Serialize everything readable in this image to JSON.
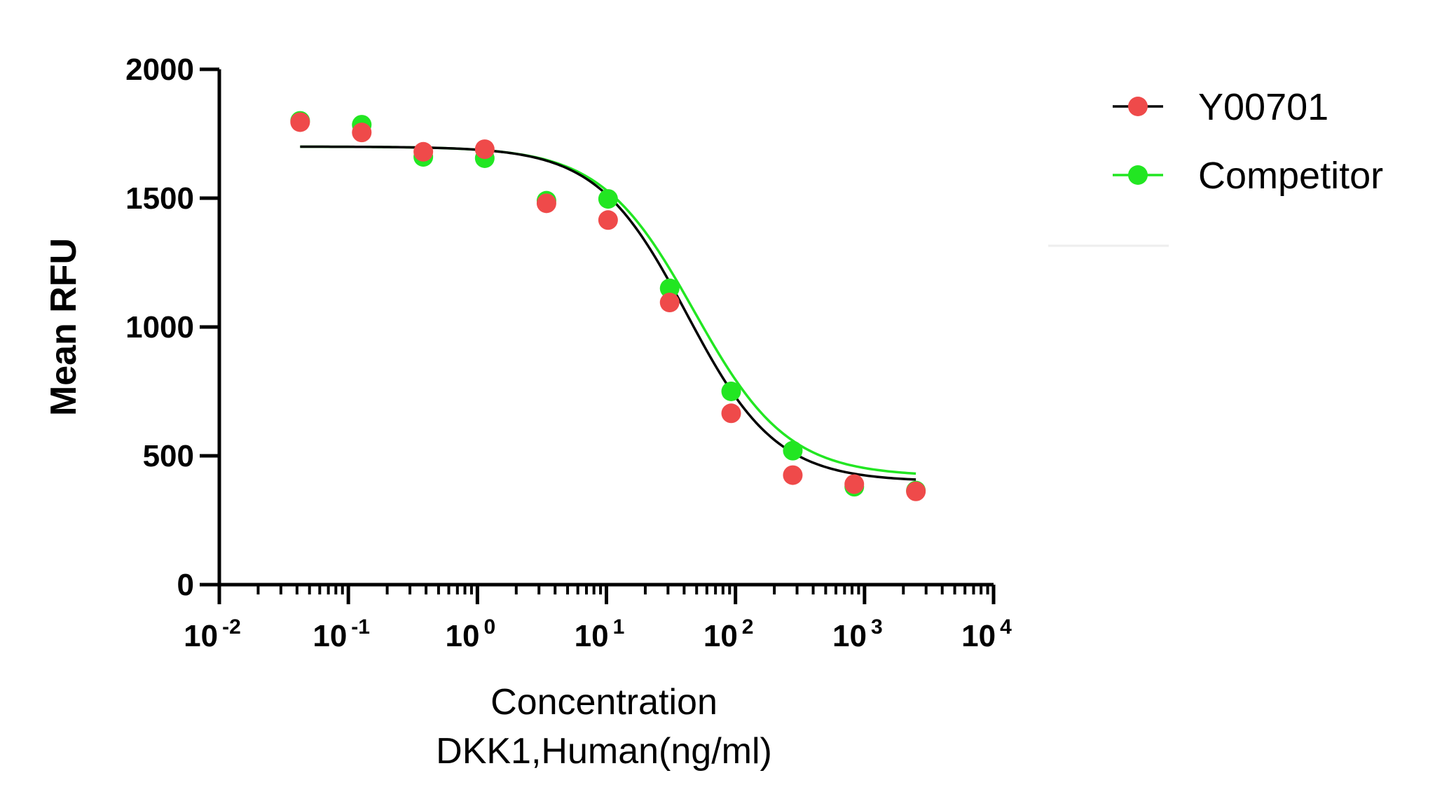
{
  "chart_data": {
    "type": "scatter",
    "title": "",
    "ylabel": "Mean RFU",
    "xlabel": "Concentration",
    "xlabel_line2": "DKK1,Human(ng/ml)",
    "xscale": "log",
    "xlim": [
      0.01,
      10000
    ],
    "ylim": [
      0,
      2000
    ],
    "yticks": [
      0,
      500,
      1000,
      1500,
      2000
    ],
    "xticks": [
      {
        "value": 0.01,
        "base": "10",
        "exp": "-2"
      },
      {
        "value": 0.1,
        "base": "10",
        "exp": "-1"
      },
      {
        "value": 1,
        "base": "10",
        "exp": "0"
      },
      {
        "value": 10,
        "base": "10",
        "exp": "1"
      },
      {
        "value": 100,
        "base": "10",
        "exp": "2"
      },
      {
        "value": 1000,
        "base": "10",
        "exp": "3"
      },
      {
        "value": 10000,
        "base": "10",
        "exp": "4"
      }
    ],
    "x": [
      0.0423,
      0.127,
      0.381,
      1.14,
      3.43,
      10.3,
      30.9,
      92.6,
      278,
      833,
      2500
    ],
    "series": [
      {
        "name": "Competitor",
        "color": "#22e622",
        "values": [
          1800,
          1785,
          1660,
          1655,
          1490,
          1497,
          1150,
          750,
          520,
          380,
          365
        ],
        "fit": {
          "bottom": 420,
          "top": 1700,
          "ec50": 48,
          "hill": 1.2
        }
      },
      {
        "name": "Y00701",
        "color": "#ef4a4a",
        "fit_color": "#000000",
        "values": [
          1795,
          1755,
          1680,
          1690,
          1480,
          1415,
          1095,
          665,
          425,
          390,
          362
        ],
        "fit": {
          "bottom": 400,
          "top": 1700,
          "ec50": 42,
          "hill": 1.25
        }
      }
    ],
    "legend": {
      "position": "top-right",
      "entries": [
        {
          "label": "Y00701",
          "color": "#ef4a4a",
          "line_color": "#000000"
        },
        {
          "label": "Competitor",
          "color": "#22e622",
          "line_color": "#22e622"
        }
      ]
    }
  }
}
